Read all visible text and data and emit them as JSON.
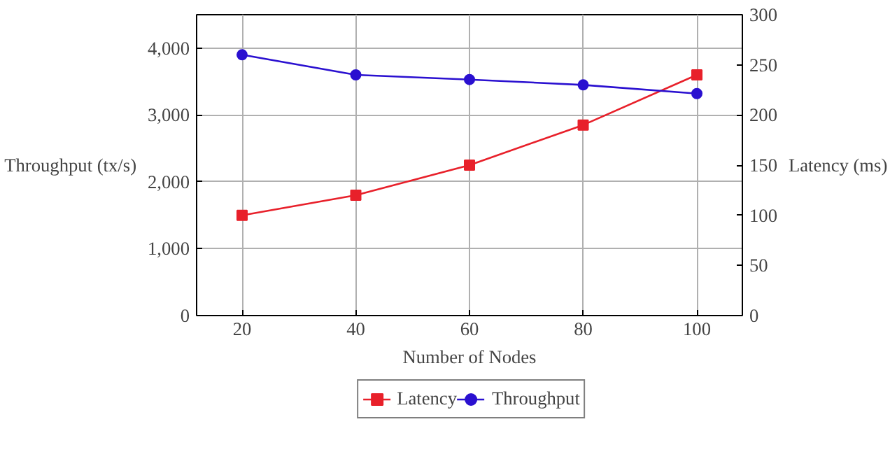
{
  "chart_data": {
    "type": "line",
    "xlabel": "Number of Nodes",
    "ylabel": "Throughput (tx/s)",
    "y2label": "Latency (ms)",
    "x": [
      20,
      40,
      60,
      80,
      100
    ],
    "series": [
      {
        "name": "Latency",
        "color": "#e8202a",
        "values": [
          100,
          120,
          150,
          190,
          240
        ],
        "axis": "y2",
        "marker": "square"
      },
      {
        "name": "Throughput",
        "color": "#2a10d0",
        "values": [
          3900,
          3600,
          3530,
          3450,
          3320
        ],
        "marker": "circle"
      }
    ],
    "xlim": [
      12,
      108
    ],
    "xticks": [
      20,
      40,
      60,
      80,
      100
    ],
    "ylim": [
      0,
      4500
    ],
    "yticks": [
      {
        "value": 0,
        "label": "0"
      },
      {
        "value": 1000,
        "label": "1,000"
      },
      {
        "value": 2000,
        "label": "2,000"
      },
      {
        "value": 3000,
        "label": "3,000"
      },
      {
        "value": 4000,
        "label": "4,000"
      }
    ],
    "y2lim": [
      0,
      300
    ],
    "y2ticks": [
      0,
      50,
      100,
      150,
      200,
      250,
      300
    ],
    "grid": true,
    "legend": "bottom",
    "line_style": "solid"
  }
}
